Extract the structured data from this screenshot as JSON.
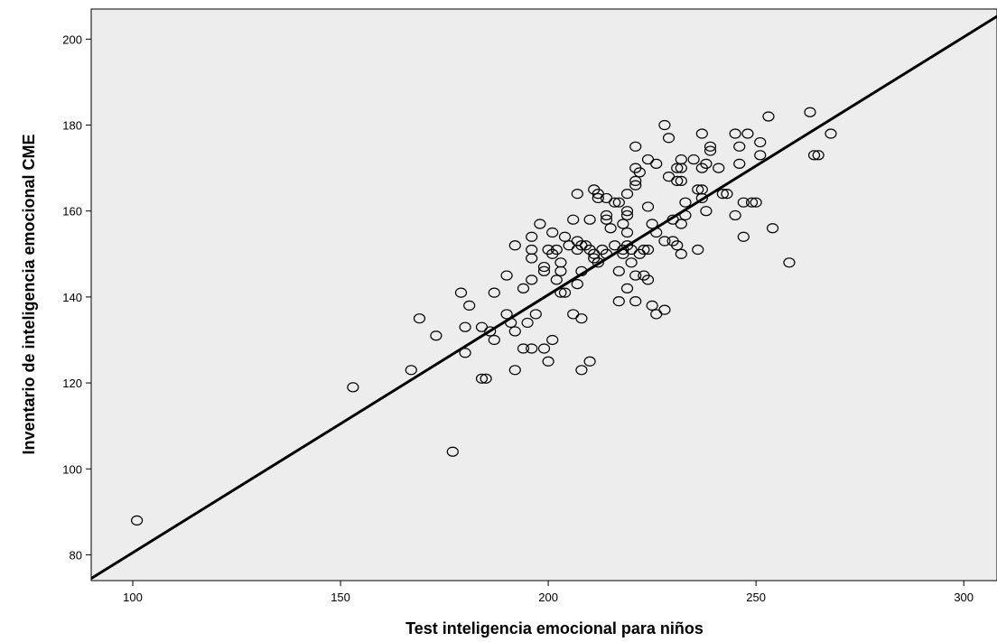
{
  "chart_data": {
    "type": "scatter",
    "title": "",
    "xlabel": "Test inteligencia emocional para niños",
    "ylabel": "Inventario de inteligencia emocional CME",
    "xlim": [
      90,
      308
    ],
    "ylim": [
      74,
      207
    ],
    "xticks": [
      100,
      150,
      200,
      250,
      300
    ],
    "yticks": [
      80,
      100,
      120,
      140,
      160,
      180,
      200
    ],
    "grid": false,
    "legend": "none",
    "plot_background": "#ededed",
    "marker": "open-circle",
    "fit_line": {
      "slope": 0.6,
      "intercept": 20.5
    },
    "points": [
      [
        101,
        88
      ],
      [
        153,
        119
      ],
      [
        167,
        123
      ],
      [
        169,
        135
      ],
      [
        173,
        131
      ],
      [
        177,
        104
      ],
      [
        179,
        141
      ],
      [
        180,
        133
      ],
      [
        180,
        127
      ],
      [
        181,
        138
      ],
      [
        184,
        133
      ],
      [
        185,
        121
      ],
      [
        184,
        121
      ],
      [
        186,
        132
      ],
      [
        187,
        141
      ],
      [
        187,
        130
      ],
      [
        190,
        145
      ],
      [
        190,
        136
      ],
      [
        191,
        134
      ],
      [
        192,
        152
      ],
      [
        192,
        132
      ],
      [
        192,
        123
      ],
      [
        194,
        142
      ],
      [
        194,
        128
      ],
      [
        195,
        134
      ],
      [
        196,
        154
      ],
      [
        196,
        151
      ],
      [
        196,
        149
      ],
      [
        196,
        144
      ],
      [
        196,
        128
      ],
      [
        197,
        136
      ],
      [
        198,
        157
      ],
      [
        199,
        147
      ],
      [
        199,
        146
      ],
      [
        199,
        128
      ],
      [
        200,
        151
      ],
      [
        200,
        125
      ],
      [
        201,
        155
      ],
      [
        201,
        150
      ],
      [
        201,
        130
      ],
      [
        202,
        151
      ],
      [
        202,
        144
      ],
      [
        203,
        148
      ],
      [
        203,
        146
      ],
      [
        203,
        141
      ],
      [
        204,
        141
      ],
      [
        204,
        154
      ],
      [
        205,
        152
      ],
      [
        206,
        158
      ],
      [
        206,
        136
      ],
      [
        207,
        164
      ],
      [
        207,
        153
      ],
      [
        207,
        151
      ],
      [
        207,
        143
      ],
      [
        208,
        152
      ],
      [
        208,
        146
      ],
      [
        208,
        135
      ],
      [
        208,
        123
      ],
      [
        209,
        152
      ],
      [
        210,
        151
      ],
      [
        210,
        158
      ],
      [
        210,
        125
      ],
      [
        211,
        165
      ],
      [
        211,
        150
      ],
      [
        211,
        149
      ],
      [
        212,
        164
      ],
      [
        212,
        163
      ],
      [
        212,
        148
      ],
      [
        213,
        151
      ],
      [
        214,
        163
      ],
      [
        214,
        159
      ],
      [
        214,
        158
      ],
      [
        214,
        150
      ],
      [
        215,
        156
      ],
      [
        216,
        152
      ],
      [
        216,
        162
      ],
      [
        217,
        162
      ],
      [
        217,
        146
      ],
      [
        217,
        139
      ],
      [
        218,
        151
      ],
      [
        218,
        150
      ],
      [
        218,
        157
      ],
      [
        219,
        164
      ],
      [
        219,
        160
      ],
      [
        219,
        159
      ],
      [
        219,
        155
      ],
      [
        219,
        152
      ],
      [
        219,
        142
      ],
      [
        220,
        148
      ],
      [
        220,
        151
      ],
      [
        221,
        175
      ],
      [
        221,
        170
      ],
      [
        221,
        167
      ],
      [
        221,
        166
      ],
      [
        221,
        145
      ],
      [
        221,
        139
      ],
      [
        222,
        169
      ],
      [
        222,
        150
      ],
      [
        223,
        145
      ],
      [
        223,
        151
      ],
      [
        224,
        172
      ],
      [
        224,
        161
      ],
      [
        224,
        151
      ],
      [
        224,
        144
      ],
      [
        225,
        157
      ],
      [
        225,
        138
      ],
      [
        226,
        171
      ],
      [
        226,
        155
      ],
      [
        226,
        136
      ],
      [
        228,
        180
      ],
      [
        228,
        153
      ],
      [
        228,
        137
      ],
      [
        229,
        177
      ],
      [
        229,
        168
      ],
      [
        230,
        158
      ],
      [
        230,
        153
      ],
      [
        231,
        170
      ],
      [
        231,
        167
      ],
      [
        231,
        152
      ],
      [
        232,
        172
      ],
      [
        232,
        170
      ],
      [
        232,
        167
      ],
      [
        232,
        157
      ],
      [
        232,
        150
      ],
      [
        233,
        162
      ],
      [
        233,
        159
      ],
      [
        235,
        172
      ],
      [
        236,
        165
      ],
      [
        236,
        151
      ],
      [
        237,
        178
      ],
      [
        237,
        170
      ],
      [
        237,
        165
      ],
      [
        237,
        163
      ],
      [
        238,
        160
      ],
      [
        238,
        171
      ],
      [
        239,
        175
      ],
      [
        239,
        174
      ],
      [
        241,
        170
      ],
      [
        242,
        164
      ],
      [
        243,
        164
      ],
      [
        245,
        178
      ],
      [
        245,
        159
      ],
      [
        246,
        175
      ],
      [
        246,
        171
      ],
      [
        247,
        162
      ],
      [
        247,
        154
      ],
      [
        248,
        178
      ],
      [
        249,
        162
      ],
      [
        250,
        162
      ],
      [
        251,
        176
      ],
      [
        251,
        173
      ],
      [
        253,
        182
      ],
      [
        254,
        156
      ],
      [
        258,
        148
      ],
      [
        263,
        183
      ],
      [
        264,
        173
      ],
      [
        265,
        173
      ],
      [
        268,
        178
      ]
    ]
  }
}
